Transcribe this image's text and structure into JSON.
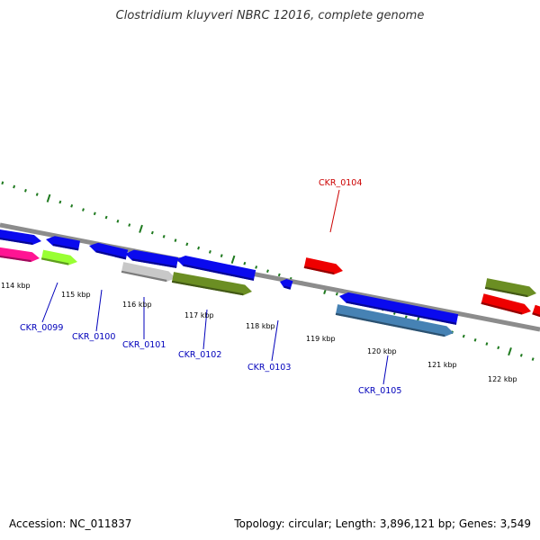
{
  "title": "Clostridium kluyveri NBRC 12016, complete genome",
  "footer": {
    "accession": "Accession: NC_011837",
    "summary": "Topology: circular; Length: 3,896,121 bp; Genes: 3,549"
  },
  "colors": {
    "backbone": "#8c8c8c",
    "tick": "#1f7a1f",
    "label_forward": "#cc0000",
    "label_reverse": "#0000bb",
    "leader_forward": "#cc0000",
    "leader_reverse": "#0000bb"
  },
  "scale": {
    "unit": "kbp",
    "labels": [
      "114 kbp",
      "115 kbp",
      "116 kbp",
      "117 kbp",
      "118 kbp",
      "119 kbp",
      "120 kbp",
      "121 kbp",
      "122 kbp"
    ]
  },
  "gene_labels": [
    {
      "text": "CKR_0099",
      "strand": "reverse"
    },
    {
      "text": "CKR_0100",
      "strand": "reverse"
    },
    {
      "text": "CKR_0101",
      "strand": "reverse"
    },
    {
      "text": "CKR_0102",
      "strand": "reverse"
    },
    {
      "text": "CKR_0103",
      "strand": "reverse"
    },
    {
      "text": "CKR_0104",
      "strand": "forward"
    },
    {
      "text": "CKR_0105",
      "strand": "reverse"
    }
  ],
  "features": [
    {
      "color": "#0a0aee",
      "direction": "right"
    },
    {
      "color": "#ff1493",
      "direction": "right"
    },
    {
      "color": "#0a0aee",
      "direction": "left"
    },
    {
      "color": "#99ff33",
      "direction": "right"
    },
    {
      "color": "#0a0aee",
      "direction": "left"
    },
    {
      "color": "#0a0aee",
      "direction": "left"
    },
    {
      "color": "#c8c8c8",
      "direction": "right"
    },
    {
      "color": "#0a0aee",
      "direction": "left"
    },
    {
      "color": "#6b8e23",
      "direction": "right"
    },
    {
      "color": "#0a0aee",
      "direction": "left"
    },
    {
      "color": "#ee0000",
      "direction": "right"
    },
    {
      "color": "#0a0aee",
      "direction": "left"
    },
    {
      "color": "#4682b4",
      "direction": "right"
    },
    {
      "color": "#6b8e23",
      "direction": "right"
    },
    {
      "color": "#ee0000",
      "direction": "right"
    },
    {
      "color": "#ee0000",
      "direction": "right"
    }
  ]
}
